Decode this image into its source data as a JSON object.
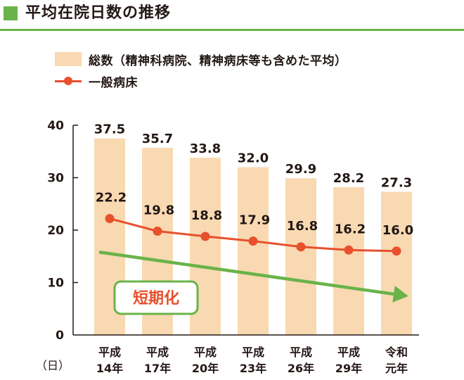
{
  "title": "平均在院日数の推移",
  "colors": {
    "accent_green": "#6ab34a",
    "bar_fill": "#f9d9b2",
    "line_red": "#e8502d",
    "text": "#231815"
  },
  "legend": {
    "bar_label": "総数（精神科病院、精神病床等も含めた平均）",
    "line_label": "一般病床"
  },
  "annotation": {
    "label": "短期化"
  },
  "chart_data": {
    "type": "bar+line",
    "title": "平均在院日数の推移",
    "categories": [
      [
        "平成",
        "14年"
      ],
      [
        "平成",
        "17年"
      ],
      [
        "平成",
        "20年"
      ],
      [
        "平成",
        "23年"
      ],
      [
        "平成",
        "26年"
      ],
      [
        "平成",
        "29年"
      ],
      [
        "令和",
        "元年"
      ]
    ],
    "series": [
      {
        "name": "総数（精神科病院、精神病床等も含めた平均）",
        "type": "bar",
        "values": [
          37.5,
          35.7,
          33.8,
          32.0,
          29.9,
          28.2,
          27.3
        ],
        "labels": [
          "37.5",
          "35.7",
          "33.8",
          "32.0",
          "29.9",
          "28.2",
          "27.3"
        ]
      },
      {
        "name": "一般病床",
        "type": "line",
        "values": [
          22.2,
          19.8,
          18.8,
          17.9,
          16.8,
          16.2,
          16.0
        ],
        "labels": [
          "22.2",
          "19.8",
          "18.8",
          "17.9",
          "16.8",
          "16.2",
          "16.0"
        ]
      }
    ],
    "trend": {
      "label": "短期化",
      "from_value": 15.8,
      "to_value": 7.8
    },
    "ylabel": "（日）",
    "ylim": [
      0,
      40
    ],
    "yticks": [
      0,
      10,
      20,
      30,
      40
    ],
    "ytick_labels": [
      "0",
      "10",
      "20",
      "30",
      "40"
    ]
  }
}
